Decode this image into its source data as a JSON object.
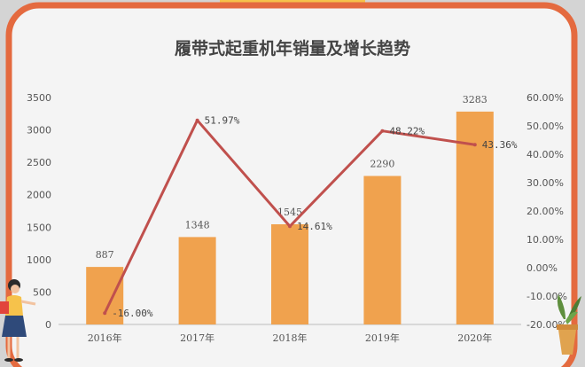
{
  "colors": {
    "background": "#d4d4d4",
    "frame": "#e46a3f",
    "panel": "#f4f4f4",
    "bar": "#f0a24e",
    "line": "#c0504d",
    "text": "#555555",
    "title": "#444444",
    "tab": "#f6c24b"
  },
  "chart_data": {
    "type": "bar",
    "title": "履带式起重机年销量及增长趋势",
    "categories": [
      "2016年",
      "2017年",
      "2018年",
      "2019年",
      "2020年"
    ],
    "series": [
      {
        "type": "bar",
        "axis": "left",
        "values": [
          887,
          1348,
          1545,
          2290,
          3283
        ],
        "labels": [
          "887",
          "1348",
          "1545",
          "2290",
          "3283"
        ]
      },
      {
        "type": "line",
        "axis": "right",
        "values": [
          -16.0,
          51.97,
          14.61,
          48.22,
          43.36
        ],
        "labels": [
          "-16.00%",
          "51.97%",
          "14.61%",
          "48.22%",
          "43.36%"
        ]
      }
    ],
    "ylim": [
      0,
      3500
    ],
    "yticks": [
      "0",
      "500",
      "1000",
      "1500",
      "2000",
      "2500",
      "3000",
      "3500"
    ],
    "y2lim": [
      -20,
      60
    ],
    "y2ticks": [
      "-20.00%",
      "-10.00%",
      "0.00%",
      "10.00%",
      "20.00%",
      "30.00%",
      "40.00%",
      "50.00%",
      "60.00%"
    ],
    "grid": false,
    "legend": "none"
  },
  "decorations": {
    "left_figure": "person-holding-book-icon",
    "right_figure": "potted-plant-icon"
  }
}
